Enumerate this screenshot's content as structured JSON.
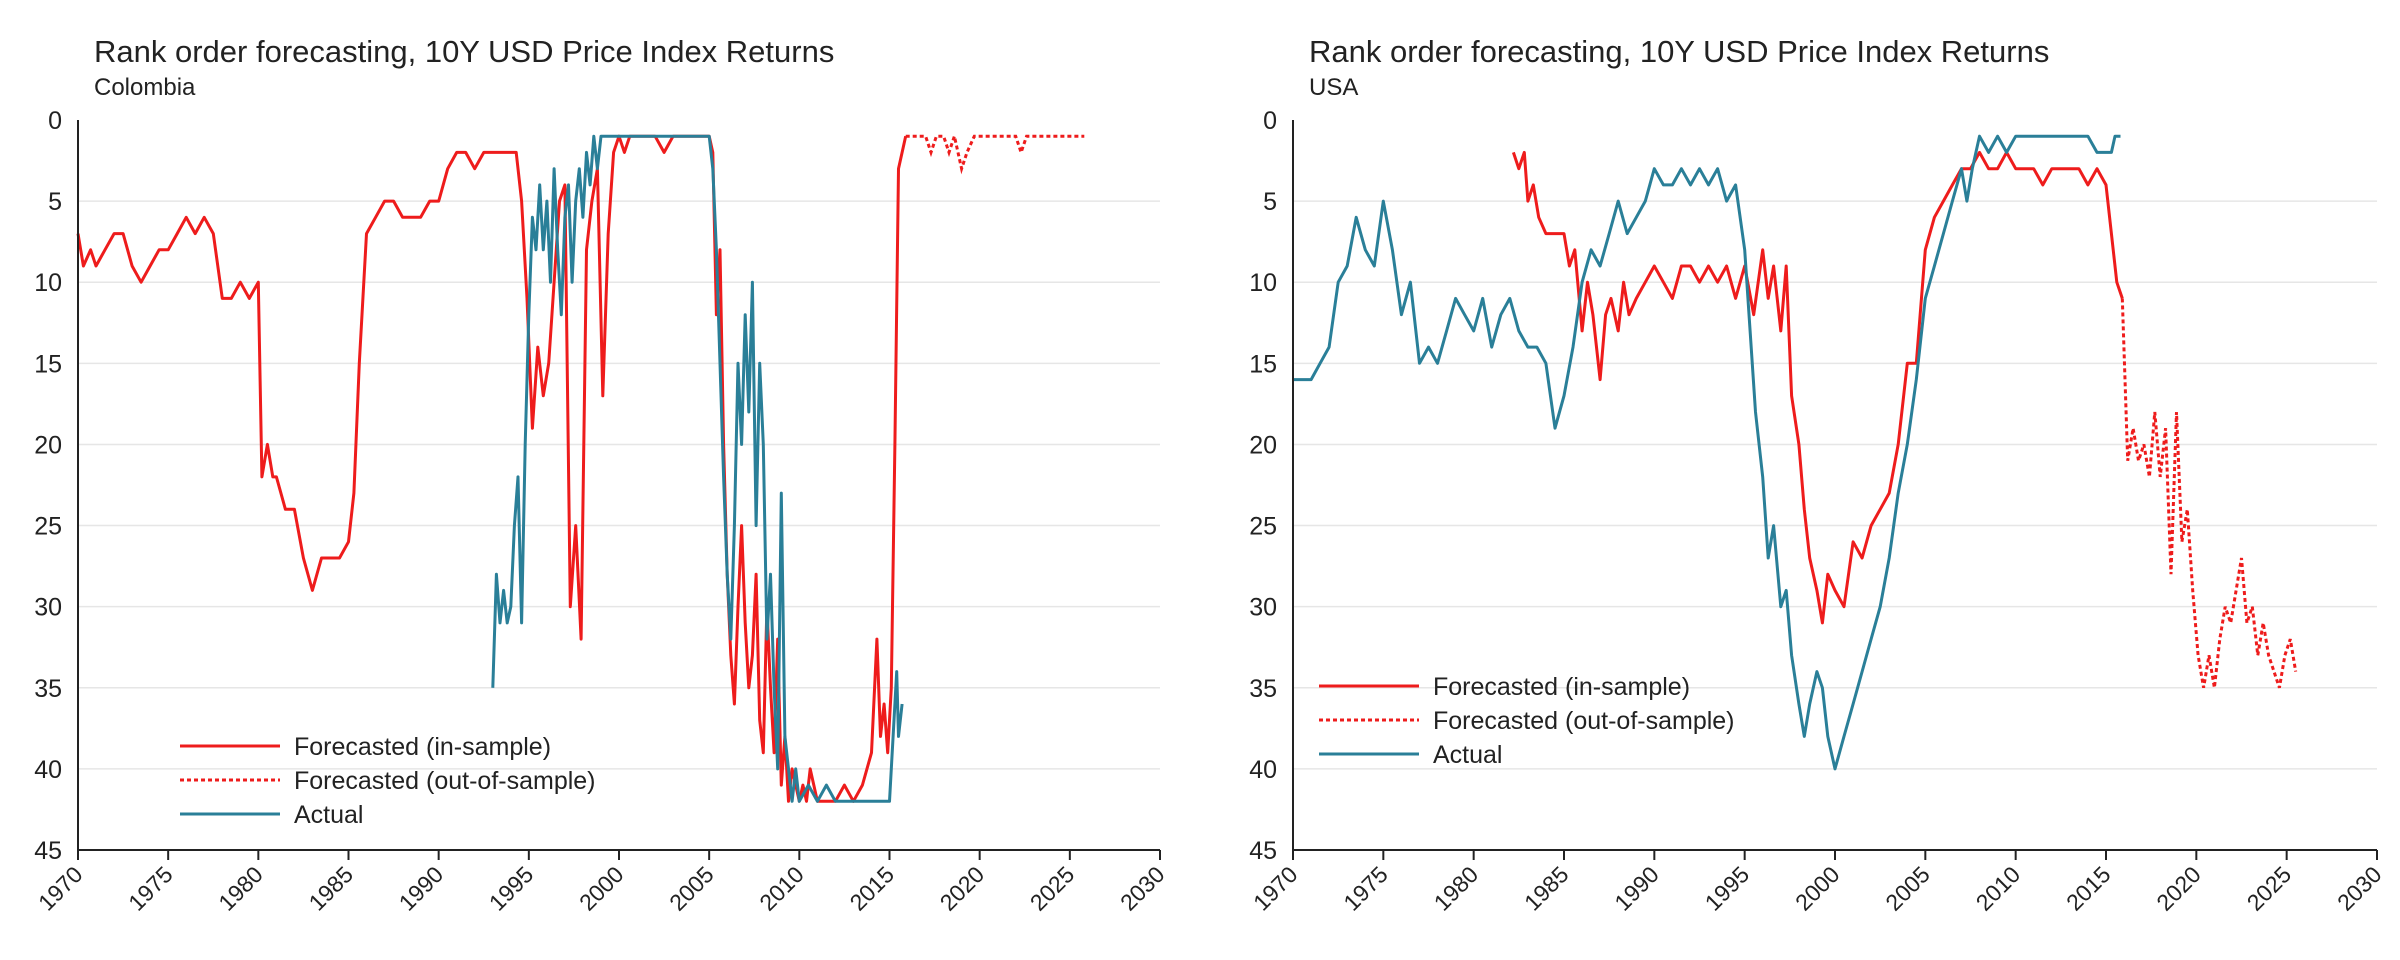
{
  "colors": {
    "forecast": "#ee1c1c",
    "actual": "#2a7f98",
    "axis": "#222222",
    "grid": "#e6e6e6"
  },
  "chart_data": [
    {
      "type": "line",
      "title": "Rank order forecasting, 10Y USD Price Index Returns",
      "subtitle": "Colombia",
      "xlabel": "",
      "ylabel": "",
      "xlim": [
        1970,
        2030
      ],
      "ylim": [
        0,
        45
      ],
      "y_inverted": true,
      "grid": true,
      "legend_position": "bottom-left",
      "x_ticks": [
        "1970",
        "1975",
        "1980",
        "1985",
        "1990",
        "1995",
        "2000",
        "2005",
        "2010",
        "2015",
        "2020",
        "2025",
        "2030"
      ],
      "y_ticks": [
        "0",
        "5",
        "10",
        "15",
        "20",
        "25",
        "30",
        "35",
        "40",
        "45"
      ],
      "series": [
        {
          "name": "Forecasted (in-sample)",
          "style": "solid",
          "color": "#ee1c1c",
          "x": [
            1970,
            1970.3,
            1970.7,
            1971,
            1971.5,
            1972,
            1972.5,
            1973,
            1973.5,
            1974,
            1974.5,
            1975,
            1975.5,
            1976,
            1976.5,
            1977,
            1977.5,
            1978,
            1978.5,
            1979,
            1979.5,
            1980,
            1980.2,
            1980.5,
            1980.8,
            1981,
            1981.5,
            1982,
            1982.5,
            1983,
            1983.5,
            1984,
            1984.5,
            1985,
            1985.3,
            1985.6,
            1986,
            1986.5,
            1987,
            1987.5,
            1988,
            1988.5,
            1989,
            1989.5,
            1990,
            1990.5,
            1991,
            1991.5,
            1992,
            1992.5,
            1993,
            1993.5,
            1994,
            1994.3,
            1994.6,
            1994.9,
            1995.2,
            1995.5,
            1995.8,
            1996.1,
            1996.4,
            1996.7,
            1997,
            1997.3,
            1997.6,
            1997.9,
            1998.2,
            1998.5,
            1998.8,
            1999.1,
            1999.4,
            1999.7,
            2000,
            2000.3,
            2000.6,
            2001,
            2001.5,
            2002,
            2002.5,
            2003,
            2003.5,
            2004,
            2004.5,
            2005,
            2005.2,
            2005.4,
            2005.6,
            2005.8,
            2006,
            2006.2,
            2006.4,
            2006.6,
            2006.8,
            2007,
            2007.2,
            2007.4,
            2007.6,
            2007.8,
            2008,
            2008.2,
            2008.4,
            2008.6,
            2008.8,
            2009,
            2009.2,
            2009.4,
            2009.6,
            2009.8,
            2010,
            2010.2,
            2010.4,
            2010.6,
            2010.8,
            2011,
            2011.5,
            2012,
            2012.5,
            2013,
            2013.5,
            2014,
            2014.3,
            2014.5,
            2014.7,
            2014.9,
            2015.1,
            2015.3,
            2015.5,
            2015.7,
            2015.9
          ],
          "y": [
            7,
            9,
            8,
            9,
            8,
            7,
            7,
            9,
            10,
            9,
            8,
            8,
            7,
            6,
            7,
            6,
            7,
            11,
            11,
            10,
            11,
            10,
            22,
            20,
            22,
            22,
            24,
            24,
            27,
            29,
            27,
            27,
            27,
            26,
            23,
            15,
            7,
            6,
            5,
            5,
            6,
            6,
            6,
            5,
            5,
            3,
            2,
            2,
            3,
            2,
            2,
            2,
            2,
            2,
            5,
            11,
            19,
            14,
            17,
            15,
            10,
            5,
            4,
            30,
            25,
            32,
            8,
            5,
            3,
            17,
            7,
            2,
            1,
            2,
            1,
            1,
            1,
            1,
            2,
            1,
            1,
            1,
            1,
            1,
            2,
            12,
            8,
            20,
            28,
            33,
            36,
            30,
            25,
            31,
            35,
            33,
            28,
            37,
            39,
            30,
            35,
            39,
            32,
            41,
            38,
            42,
            40,
            41,
            42,
            41,
            42,
            40,
            41,
            42,
            42,
            42,
            41,
            42,
            41,
            39,
            32,
            38,
            36,
            39,
            35,
            20,
            3,
            2,
            1
          ],
          "dashed_x": [
            2015.9,
            2016.5,
            2017,
            2017.3,
            2017.6,
            2018,
            2018.3,
            2018.6,
            2019,
            2019.3,
            2019.7,
            2020,
            2021,
            2022,
            2022.3,
            2022.6,
            2023,
            2024,
            2025,
            2025.8
          ],
          "dashed_y": [
            1,
            1,
            1,
            2,
            1,
            1,
            2,
            1,
            3,
            2,
            1,
            1,
            1,
            1,
            2,
            1,
            1,
            1,
            1,
            1
          ],
          "dashed_name": "Forecasted (out-of-sample)"
        },
        {
          "name": "Actual",
          "style": "solid",
          "color": "#2a7f98",
          "x": [
            1993,
            1993.2,
            1993.4,
            1993.6,
            1993.8,
            1994,
            1994.2,
            1994.4,
            1994.6,
            1994.8,
            1995,
            1995.2,
            1995.4,
            1995.6,
            1995.8,
            1996,
            1996.2,
            1996.4,
            1996.6,
            1996.8,
            1997,
            1997.2,
            1997.4,
            1997.6,
            1997.8,
            1998,
            1998.2,
            1998.4,
            1998.6,
            1998.8,
            1999,
            1999.2,
            1999.5,
            2000,
            2000.5,
            2001,
            2001.5,
            2002,
            2002.5,
            2003,
            2003.5,
            2004,
            2004.5,
            2005,
            2005.2,
            2005.4,
            2005.6,
            2005.8,
            2006,
            2006.2,
            2006.4,
            2006.6,
            2006.8,
            2007,
            2007.2,
            2007.4,
            2007.6,
            2007.8,
            2008,
            2008.2,
            2008.4,
            2008.6,
            2008.8,
            2009,
            2009.2,
            2009.4,
            2009.6,
            2009.8,
            2010,
            2010.5,
            2011,
            2011.5,
            2012,
            2012.5,
            2013,
            2013.5,
            2014,
            2014.5,
            2015,
            2015.2,
            2015.4,
            2015.5,
            2015.7
          ],
          "y": [
            35,
            28,
            31,
            29,
            31,
            30,
            25,
            22,
            31,
            20,
            12,
            6,
            8,
            4,
            8,
            5,
            10,
            3,
            8,
            12,
            6,
            4,
            10,
            5,
            3,
            6,
            2,
            4,
            1,
            3,
            1,
            1,
            1,
            1,
            1,
            1,
            1,
            1,
            1,
            1,
            1,
            1,
            1,
            1,
            3,
            8,
            15,
            22,
            28,
            32,
            25,
            15,
            20,
            12,
            18,
            10,
            25,
            15,
            20,
            32,
            28,
            35,
            40,
            23,
            38,
            40,
            42,
            40,
            42,
            41,
            42,
            41,
            42,
            42,
            42,
            42,
            42,
            42,
            42,
            38,
            34,
            38,
            36
          ]
        }
      ]
    },
    {
      "type": "line",
      "title": "Rank order forecasting, 10Y USD Price Index Returns",
      "subtitle": "USA",
      "xlabel": "",
      "ylabel": "",
      "xlim": [
        1970,
        2030
      ],
      "ylim": [
        0,
        45
      ],
      "y_inverted": true,
      "grid": true,
      "legend_position": "bottom-left",
      "x_ticks": [
        "1970",
        "1975",
        "1980",
        "1985",
        "1990",
        "1995",
        "2000",
        "2005",
        "2010",
        "2015",
        "2020",
        "2025",
        "2030"
      ],
      "y_ticks": [
        "0",
        "5",
        "10",
        "15",
        "20",
        "25",
        "30",
        "35",
        "40",
        "45"
      ],
      "series": [
        {
          "name": "Forecasted (in-sample)",
          "style": "solid",
          "color": "#ee1c1c",
          "x": [
            1982.2,
            1982.5,
            1982.8,
            1983,
            1983.3,
            1983.6,
            1984,
            1984.5,
            1985,
            1985.3,
            1985.6,
            1986,
            1986.3,
            1986.6,
            1987,
            1987.3,
            1987.6,
            1988,
            1988.3,
            1988.6,
            1989,
            1989.5,
            1990,
            1990.5,
            1991,
            1991.5,
            1992,
            1992.5,
            1993,
            1993.5,
            1994,
            1994.5,
            1995,
            1995.5,
            1996,
            1996.3,
            1996.6,
            1997,
            1997.3,
            1997.6,
            1998,
            1998.3,
            1998.6,
            1999,
            1999.3,
            1999.6,
            2000,
            2000.5,
            2001,
            2001.5,
            2002,
            2002.5,
            2003,
            2003.5,
            2004,
            2004.5,
            2005,
            2005.5,
            2006,
            2006.5,
            2007,
            2007.5,
            2008,
            2008.5,
            2009,
            2009.5,
            2010,
            2010.5,
            2011,
            2011.5,
            2012,
            2012.5,
            2013,
            2013.5,
            2014,
            2014.5,
            2015,
            2015.3,
            2015.6,
            2015.9
          ],
          "y": [
            2,
            3,
            2,
            5,
            4,
            6,
            7,
            7,
            7,
            9,
            8,
            13,
            10,
            12,
            16,
            12,
            11,
            13,
            10,
            12,
            11,
            10,
            9,
            10,
            11,
            9,
            9,
            10,
            9,
            10,
            9,
            11,
            9,
            12,
            8,
            11,
            9,
            13,
            9,
            17,
            20,
            24,
            27,
            29,
            31,
            28,
            29,
            30,
            26,
            27,
            25,
            24,
            23,
            20,
            15,
            15,
            8,
            6,
            5,
            4,
            3,
            3,
            2,
            3,
            3,
            2,
            3,
            3,
            3,
            4,
            3,
            3,
            3,
            3,
            4,
            3,
            4,
            7,
            10,
            11
          ],
          "dashed_x": [
            2015.9,
            2016.2,
            2016.5,
            2016.8,
            2017.1,
            2017.4,
            2017.7,
            2018,
            2018.3,
            2018.6,
            2018.9,
            2019.2,
            2019.5,
            2019.8,
            2020.1,
            2020.4,
            2020.7,
            2021,
            2021.3,
            2021.6,
            2021.9,
            2022.2,
            2022.5,
            2022.8,
            2023.1,
            2023.4,
            2023.7,
            2024,
            2024.3,
            2024.6,
            2024.9,
            2025.2,
            2025.5
          ],
          "dashed_y": [
            11,
            21,
            19,
            21,
            20,
            22,
            18,
            22,
            19,
            28,
            18,
            26,
            24,
            29,
            33,
            35,
            33,
            35,
            32,
            30,
            31,
            29,
            27,
            31,
            30,
            33,
            31,
            33,
            34,
            35,
            33,
            32,
            34
          ],
          "dashed_name": "Forecasted (out-of-sample)"
        },
        {
          "name": "Actual",
          "style": "solid",
          "color": "#2a7f98",
          "x": [
            1970,
            1971,
            1971.5,
            1972,
            1972.5,
            1973,
            1973.5,
            1974,
            1974.5,
            1975,
            1975.5,
            1976,
            1976.5,
            1977,
            1977.5,
            1978,
            1978.5,
            1979,
            1979.5,
            1980,
            1980.5,
            1981,
            1981.5,
            1982,
            1982.5,
            1983,
            1983.5,
            1984,
            1984.5,
            1985,
            1985.5,
            1986,
            1986.5,
            1987,
            1987.5,
            1988,
            1988.5,
            1989,
            1989.5,
            1990,
            1990.5,
            1991,
            1991.5,
            1992,
            1992.5,
            1993,
            1993.5,
            1994,
            1994.5,
            1995,
            1995.3,
            1995.6,
            1996,
            1996.3,
            1996.6,
            1997,
            1997.3,
            1997.6,
            1998,
            1998.3,
            1998.6,
            1999,
            1999.3,
            1999.6,
            2000,
            2000.5,
            2001,
            2001.5,
            2002,
            2002.5,
            2003,
            2003.5,
            2004,
            2004.5,
            2005,
            2005.5,
            2006,
            2006.5,
            2007,
            2007.3,
            2007.6,
            2008,
            2008.5,
            2009,
            2009.5,
            2010,
            2010.5,
            2011,
            2011.5,
            2012,
            2013,
            2014,
            2014.5,
            2015,
            2015.3,
            2015.5,
            2015.8
          ],
          "y": [
            16,
            16,
            15,
            14,
            10,
            9,
            6,
            8,
            9,
            5,
            8,
            12,
            10,
            15,
            14,
            15,
            13,
            11,
            12,
            13,
            11,
            14,
            12,
            11,
            13,
            14,
            14,
            15,
            19,
            17,
            14,
            10,
            8,
            9,
            7,
            5,
            7,
            6,
            5,
            3,
            4,
            4,
            3,
            4,
            3,
            4,
            3,
            5,
            4,
            8,
            13,
            18,
            22,
            27,
            25,
            30,
            29,
            33,
            36,
            38,
            36,
            34,
            35,
            38,
            40,
            38,
            36,
            34,
            32,
            30,
            27,
            23,
            20,
            16,
            11,
            9,
            7,
            5,
            3,
            5,
            3,
            1,
            2,
            1,
            2,
            1,
            1,
            1,
            1,
            1,
            1,
            1,
            2,
            2,
            2,
            1,
            1
          ]
        }
      ]
    }
  ]
}
